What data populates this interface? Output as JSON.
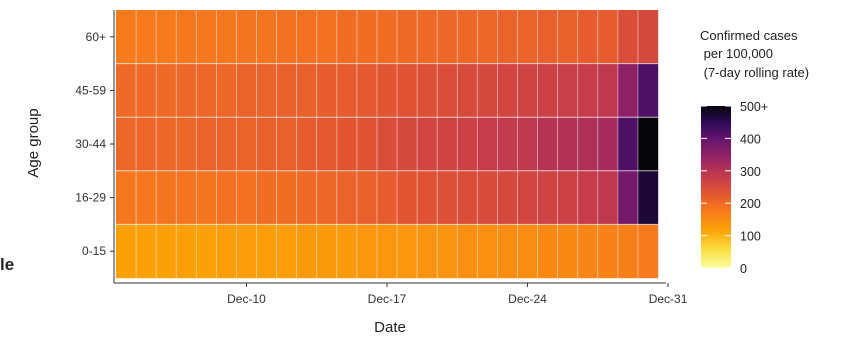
{
  "chart_data": {
    "type": "heatmap",
    "xlabel": "Date",
    "ylabel": "Age group",
    "x_ticks": [
      "Dec-10",
      "Dec-17",
      "Dec-24",
      "Dec-31"
    ],
    "dates": [
      "Dec-04",
      "Dec-05",
      "Dec-06",
      "Dec-07",
      "Dec-08",
      "Dec-09",
      "Dec-10",
      "Dec-11",
      "Dec-12",
      "Dec-13",
      "Dec-14",
      "Dec-15",
      "Dec-16",
      "Dec-17",
      "Dec-18",
      "Dec-19",
      "Dec-20",
      "Dec-21",
      "Dec-22",
      "Dec-23",
      "Dec-24",
      "Dec-25",
      "Dec-26",
      "Dec-27",
      "Dec-28",
      "Dec-29",
      "Dec-30"
    ],
    "age_groups": [
      "60+",
      "45-59",
      "30-44",
      "16-29",
      "0-15"
    ],
    "rows": [
      {
        "group": "60+",
        "values": [
          175,
          175,
          175,
          180,
          180,
          180,
          185,
          185,
          190,
          190,
          190,
          195,
          195,
          195,
          200,
          200,
          205,
          205,
          205,
          210,
          210,
          215,
          215,
          220,
          220,
          245,
          255
        ]
      },
      {
        "group": "45-59",
        "values": [
          200,
          200,
          200,
          205,
          205,
          205,
          210,
          210,
          215,
          215,
          220,
          220,
          225,
          230,
          235,
          240,
          245,
          250,
          255,
          260,
          265,
          270,
          275,
          280,
          290,
          350,
          420
        ]
      },
      {
        "group": "30-44",
        "values": [
          205,
          205,
          205,
          205,
          210,
          210,
          210,
          215,
          215,
          220,
          225,
          230,
          235,
          245,
          255,
          260,
          265,
          270,
          280,
          285,
          290,
          300,
          305,
          310,
          320,
          420,
          500
        ]
      },
      {
        "group": "16-29",
        "values": [
          180,
          180,
          185,
          185,
          185,
          190,
          190,
          195,
          195,
          200,
          205,
          210,
          215,
          220,
          230,
          235,
          240,
          245,
          250,
          255,
          260,
          265,
          270,
          280,
          290,
          380,
          470
        ]
      },
      {
        "group": "0-15",
        "values": [
          120,
          120,
          120,
          120,
          120,
          125,
          125,
          125,
          125,
          130,
          130,
          130,
          135,
          135,
          135,
          140,
          140,
          145,
          145,
          150,
          150,
          155,
          155,
          160,
          165,
          170,
          175
        ]
      }
    ],
    "legend": {
      "title_lines": [
        "Confirmed cases",
        " per 100,000",
        " (7-day rolling rate)"
      ],
      "labels": [
        "500+",
        "400",
        "300",
        "200",
        "100",
        "0"
      ],
      "scale": "inferno (reversed)",
      "range": [
        0,
        500
      ]
    },
    "grid": true,
    "legend_position": "right"
  },
  "stray_text": "le"
}
